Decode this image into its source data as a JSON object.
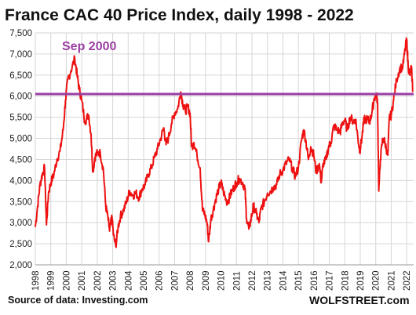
{
  "chart_data": {
    "type": "line",
    "title": "France CAC 40 Price Index, daily 1998 - 2022",
    "xlabel": "",
    "ylabel": "",
    "xlim": [
      1998,
      2022.45
    ],
    "ylim": [
      2000,
      7500
    ],
    "y_ticks": [
      "2,000",
      "2,500",
      "3,000",
      "3,500",
      "4,000",
      "4,500",
      "5,000",
      "5,500",
      "6,000",
      "6,500",
      "7,000",
      "7,500"
    ],
    "x_ticks": [
      "1998",
      "1999",
      "2000",
      "2001",
      "2002",
      "2003",
      "2004",
      "2005",
      "2006",
      "2007",
      "2008",
      "2009",
      "2010",
      "2011",
      "2012",
      "2013",
      "2014",
      "2015",
      "2016",
      "2017",
      "2018",
      "2019",
      "2020",
      "2021",
      "2022"
    ],
    "grid": true,
    "series": [
      {
        "color": "#ee1111",
        "points": [
          [
            1998.0,
            2900
          ],
          [
            1998.15,
            3400
          ],
          [
            1998.3,
            3900
          ],
          [
            1998.45,
            4150
          ],
          [
            1998.6,
            4300
          ],
          [
            1998.72,
            2950
          ],
          [
            1998.85,
            3700
          ],
          [
            1999.0,
            3950
          ],
          [
            1999.2,
            4150
          ],
          [
            1999.4,
            4500
          ],
          [
            1999.6,
            4700
          ],
          [
            1999.8,
            5200
          ],
          [
            1999.95,
            5900
          ],
          [
            2000.1,
            6400
          ],
          [
            2000.3,
            6600
          ],
          [
            2000.55,
            6900
          ],
          [
            2000.7,
            6500
          ],
          [
            2000.85,
            6150
          ],
          [
            2001.0,
            5900
          ],
          [
            2001.2,
            5400
          ],
          [
            2001.45,
            5550
          ],
          [
            2001.6,
            5100
          ],
          [
            2001.72,
            4200
          ],
          [
            2001.85,
            4550
          ],
          [
            2002.0,
            4650
          ],
          [
            2002.2,
            4650
          ],
          [
            2002.4,
            4250
          ],
          [
            2002.55,
            3400
          ],
          [
            2002.7,
            3100
          ],
          [
            2002.8,
            2800
          ],
          [
            2002.95,
            3150
          ],
          [
            2003.05,
            2700
          ],
          [
            2003.2,
            2450
          ],
          [
            2003.35,
            2900
          ],
          [
            2003.5,
            3150
          ],
          [
            2003.7,
            3300
          ],
          [
            2003.9,
            3500
          ],
          [
            2004.1,
            3750
          ],
          [
            2004.3,
            3650
          ],
          [
            2004.5,
            3700
          ],
          [
            2004.7,
            3600
          ],
          [
            2004.9,
            3800
          ],
          [
            2005.1,
            3900
          ],
          [
            2005.3,
            4150
          ],
          [
            2005.5,
            4300
          ],
          [
            2005.7,
            4550
          ],
          [
            2005.9,
            4750
          ],
          [
            2006.1,
            5000
          ],
          [
            2006.3,
            5250
          ],
          [
            2006.45,
            4850
          ],
          [
            2006.6,
            5000
          ],
          [
            2006.8,
            5350
          ],
          [
            2007.0,
            5600
          ],
          [
            2007.2,
            5700
          ],
          [
            2007.4,
            6100
          ],
          [
            2007.55,
            5800
          ],
          [
            2007.7,
            5650
          ],
          [
            2007.85,
            5750
          ],
          [
            2008.0,
            5600
          ],
          [
            2008.1,
            4800
          ],
          [
            2008.25,
            4900
          ],
          [
            2008.45,
            4600
          ],
          [
            2008.65,
            4300
          ],
          [
            2008.8,
            3300
          ],
          [
            2008.95,
            3200
          ],
          [
            2009.1,
            3000
          ],
          [
            2009.2,
            2550
          ],
          [
            2009.35,
            3100
          ],
          [
            2009.5,
            3300
          ],
          [
            2009.65,
            3550
          ],
          [
            2009.85,
            3800
          ],
          [
            2010.0,
            3950
          ],
          [
            2010.15,
            3750
          ],
          [
            2010.35,
            3500
          ],
          [
            2010.5,
            3550
          ],
          [
            2010.65,
            3700
          ],
          [
            2010.85,
            3850
          ],
          [
            2011.0,
            3950
          ],
          [
            2011.2,
            4050
          ],
          [
            2011.4,
            3950
          ],
          [
            2011.55,
            3800
          ],
          [
            2011.65,
            3100
          ],
          [
            2011.8,
            2850
          ],
          [
            2011.95,
            3100
          ],
          [
            2012.1,
            3400
          ],
          [
            2012.3,
            3200
          ],
          [
            2012.45,
            3000
          ],
          [
            2012.6,
            3350
          ],
          [
            2012.8,
            3500
          ],
          [
            2013.0,
            3700
          ],
          [
            2013.2,
            3750
          ],
          [
            2013.4,
            3850
          ],
          [
            2013.6,
            3900
          ],
          [
            2013.8,
            4150
          ],
          [
            2014.0,
            4250
          ],
          [
            2014.2,
            4400
          ],
          [
            2014.4,
            4500
          ],
          [
            2014.6,
            4300
          ],
          [
            2014.8,
            4100
          ],
          [
            2015.0,
            4300
          ],
          [
            2015.2,
            4950
          ],
          [
            2015.35,
            5200
          ],
          [
            2015.5,
            4900
          ],
          [
            2015.65,
            4500
          ],
          [
            2015.8,
            4800
          ],
          [
            2016.0,
            4600
          ],
          [
            2016.15,
            4200
          ],
          [
            2016.35,
            4400
          ],
          [
            2016.48,
            3950
          ],
          [
            2016.6,
            4400
          ],
          [
            2016.8,
            4500
          ],
          [
            2016.95,
            4800
          ],
          [
            2017.1,
            4900
          ],
          [
            2017.3,
            5300
          ],
          [
            2017.5,
            5200
          ],
          [
            2017.7,
            5150
          ],
          [
            2017.85,
            5350
          ],
          [
            2018.0,
            5450
          ],
          [
            2018.15,
            5200
          ],
          [
            2018.35,
            5500
          ],
          [
            2018.55,
            5400
          ],
          [
            2018.7,
            5450
          ],
          [
            2018.85,
            5000
          ],
          [
            2018.97,
            4700
          ],
          [
            2019.1,
            5000
          ],
          [
            2019.25,
            5450
          ],
          [
            2019.45,
            5450
          ],
          [
            2019.6,
            5400
          ],
          [
            2019.75,
            5600
          ],
          [
            2019.9,
            5950
          ],
          [
            2020.05,
            6050
          ],
          [
            2020.12,
            5800
          ],
          [
            2020.2,
            3750
          ],
          [
            2020.3,
            4500
          ],
          [
            2020.45,
            5000
          ],
          [
            2020.6,
            4900
          ],
          [
            2020.78,
            4600
          ],
          [
            2020.88,
            5500
          ],
          [
            2021.0,
            5550
          ],
          [
            2021.15,
            5900
          ],
          [
            2021.35,
            6400
          ],
          [
            2021.55,
            6650
          ],
          [
            2021.75,
            6700
          ],
          [
            2021.9,
            7100
          ],
          [
            2022.0,
            7350
          ],
          [
            2022.1,
            6700
          ],
          [
            2022.2,
            6500
          ],
          [
            2022.3,
            6700
          ],
          [
            2022.4,
            6100
          ]
        ]
      }
    ],
    "reference_line": {
      "value": 6050,
      "label": "Sep 2000",
      "color": "#9b3ea3"
    }
  },
  "footer": {
    "source": "Source of data: Investing.com",
    "brand": "WOLFSTREET.com"
  }
}
